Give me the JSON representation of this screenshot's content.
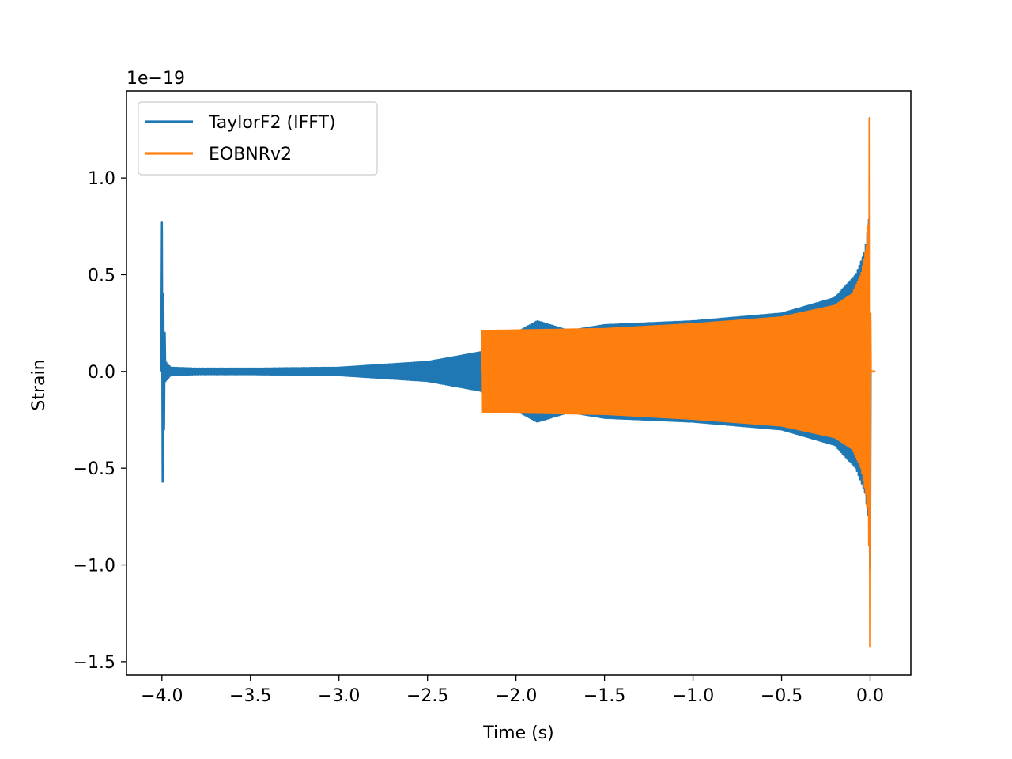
{
  "chart_data": {
    "type": "line",
    "xlabel": "Time (s)",
    "ylabel": "Strain",
    "offset_text": "1e−19",
    "scale_exponent": -19,
    "xlim": [
      -4.2,
      0.23
    ],
    "ylim": [
      -1.57,
      1.45
    ],
    "xticks": [
      -4.0,
      -3.5,
      -3.0,
      -2.5,
      -2.0,
      -1.5,
      -1.0,
      -0.5,
      0.0
    ],
    "xtick_labels": [
      "−4.0",
      "−3.5",
      "−3.0",
      "−2.5",
      "−2.0",
      "−1.5",
      "−1.0",
      "−0.5",
      "0.0"
    ],
    "yticks": [
      -1.5,
      -1.0,
      -0.5,
      0.0,
      0.5,
      1.0
    ],
    "ytick_labels": [
      "−1.5",
      "−1.0",
      "−0.5",
      "0.0",
      "0.5",
      "1.0"
    ],
    "grid": false,
    "legend_position": "top-left",
    "series": [
      {
        "name": "TaylorF2 (IFFT)",
        "color": "#1f77b4",
        "start_spike": {
          "t": -4.0,
          "max": 0.77,
          "min": -0.57
        },
        "envelope": [
          [
            -3.98,
            0.05
          ],
          [
            -3.95,
            0.02
          ],
          [
            -3.8,
            0.015
          ],
          [
            -3.5,
            0.015
          ],
          [
            -3.0,
            0.02
          ],
          [
            -2.5,
            0.05
          ],
          [
            -2.2,
            0.1
          ],
          [
            -2.0,
            0.2
          ],
          [
            -1.88,
            0.26
          ],
          [
            -1.7,
            0.21
          ],
          [
            -1.5,
            0.24
          ],
          [
            -1.0,
            0.26
          ],
          [
            -0.5,
            0.3
          ],
          [
            -0.2,
            0.38
          ],
          [
            -0.08,
            0.5
          ],
          [
            -0.03,
            0.62
          ],
          [
            -0.01,
            0.75
          ],
          [
            0.0,
            0.85
          ]
        ],
        "end_min": -1.02
      },
      {
        "name": "EOBNRv2",
        "color": "#ff7f0e",
        "t_start": -2.19,
        "t_end": 0.0,
        "peak_max": 1.31,
        "peak_min": -1.42,
        "envelope": [
          [
            -2.19,
            0.21
          ],
          [
            -1.5,
            0.22
          ],
          [
            -1.0,
            0.245
          ],
          [
            -0.5,
            0.28
          ],
          [
            -0.2,
            0.34
          ],
          [
            -0.1,
            0.4
          ],
          [
            -0.05,
            0.5
          ],
          [
            -0.02,
            0.65
          ],
          [
            -0.01,
            0.8
          ]
        ],
        "ringdown_t": [
          0.0,
          0.03
        ],
        "ringdown_value": 0.0
      }
    ]
  }
}
